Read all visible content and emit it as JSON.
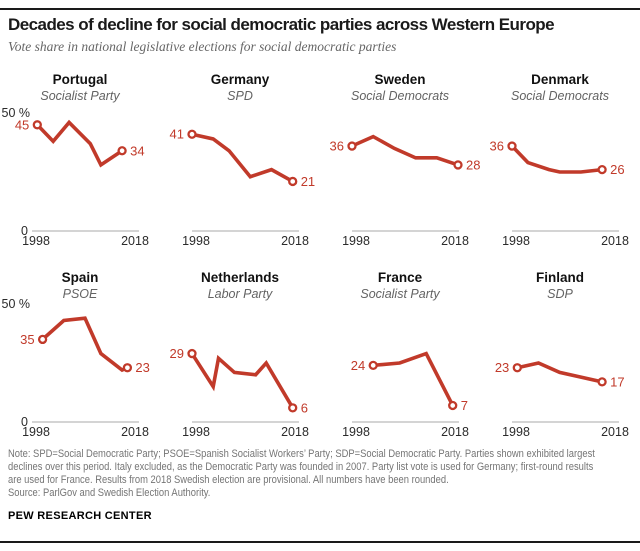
{
  "header": {
    "title": "Decades of decline for social democratic parties across Western Europe",
    "subtitle": "Vote share in national legislative elections for social democratic parties"
  },
  "footer": {
    "note_lines": [
      "Note: SPD=Social Democratic Party; PSOE=Spanish Socialist Workers’ Party; SDP=Social Democratic Party. Parties shown exhibited largest",
      "declines over this period. Italy excluded, as the Democratic Party was founded in 2007. Party list vote is used for Germany; first-round results",
      "are used for France. Results from 2018 Swedish election are provisional. All numbers have been rounded."
    ],
    "source": "Source: ParlGov and Swedish Election Authority.",
    "brand": "PEW RESEARCH CENTER"
  },
  "chart_data": {
    "type": "line",
    "unit": "percent vote share",
    "x_range": [
      1998,
      2018
    ],
    "y_range": [
      0,
      50
    ],
    "x_ticks": [
      "1998",
      "2018"
    ],
    "y_tick_top": "50 %",
    "y_tick_bottom": "0",
    "line_color": "#c13a2a",
    "axis_color": "#a8a8a8",
    "tick_text_color": "#2b2b2b",
    "panels": [
      {
        "country": "Portugal",
        "party": "Socialist Party",
        "start_label": 45,
        "end_label": 34,
        "show_y_labels": true,
        "points": [
          [
            1999,
            45
          ],
          [
            2002,
            38
          ],
          [
            2005,
            46
          ],
          [
            2009,
            37
          ],
          [
            2011,
            28
          ],
          [
            2015,
            34
          ]
        ]
      },
      {
        "country": "Germany",
        "party": "SPD",
        "start_label": 41,
        "end_label": 21,
        "show_y_labels": false,
        "points": [
          [
            1998,
            41
          ],
          [
            2002,
            39
          ],
          [
            2005,
            34
          ],
          [
            2009,
            23
          ],
          [
            2013,
            26
          ],
          [
            2017,
            21
          ]
        ]
      },
      {
        "country": "Sweden",
        "party": "Social Democrats",
        "start_label": 36,
        "end_label": 28,
        "show_y_labels": false,
        "points": [
          [
            1998,
            36
          ],
          [
            2002,
            40
          ],
          [
            2006,
            35
          ],
          [
            2010,
            31
          ],
          [
            2014,
            31
          ],
          [
            2018,
            28
          ]
        ]
      },
      {
        "country": "Denmark",
        "party": "Social Democrats",
        "start_label": 36,
        "end_label": 26,
        "show_y_labels": false,
        "points": [
          [
            1998,
            36
          ],
          [
            2001,
            29
          ],
          [
            2005,
            26
          ],
          [
            2007,
            25
          ],
          [
            2011,
            25
          ],
          [
            2015,
            26
          ]
        ]
      },
      {
        "country": "Spain",
        "party": "PSOE",
        "start_label": 35,
        "end_label": 23,
        "show_y_labels": true,
        "points": [
          [
            2000,
            35
          ],
          [
            2004,
            43
          ],
          [
            2008,
            44
          ],
          [
            2011,
            29
          ],
          [
            2015,
            22
          ],
          [
            2016,
            23
          ]
        ]
      },
      {
        "country": "Netherlands",
        "party": "Labor Party",
        "start_label": 29,
        "end_label": 6,
        "show_y_labels": false,
        "points": [
          [
            1998,
            29
          ],
          [
            2002,
            15
          ],
          [
            2003,
            27
          ],
          [
            2006,
            21
          ],
          [
            2010,
            20
          ],
          [
            2012,
            25
          ],
          [
            2017,
            6
          ]
        ]
      },
      {
        "country": "France",
        "party": "Socialist Party",
        "start_label": 24,
        "end_label": 7,
        "show_y_labels": false,
        "points": [
          [
            2002,
            24
          ],
          [
            2007,
            25
          ],
          [
            2012,
            29
          ],
          [
            2017,
            7
          ]
        ]
      },
      {
        "country": "Finland",
        "party": "SDP",
        "start_label": 23,
        "end_label": 17,
        "show_y_labels": false,
        "points": [
          [
            1999,
            23
          ],
          [
            2003,
            25
          ],
          [
            2007,
            21
          ],
          [
            2011,
            19
          ],
          [
            2015,
            17
          ]
        ]
      }
    ]
  }
}
